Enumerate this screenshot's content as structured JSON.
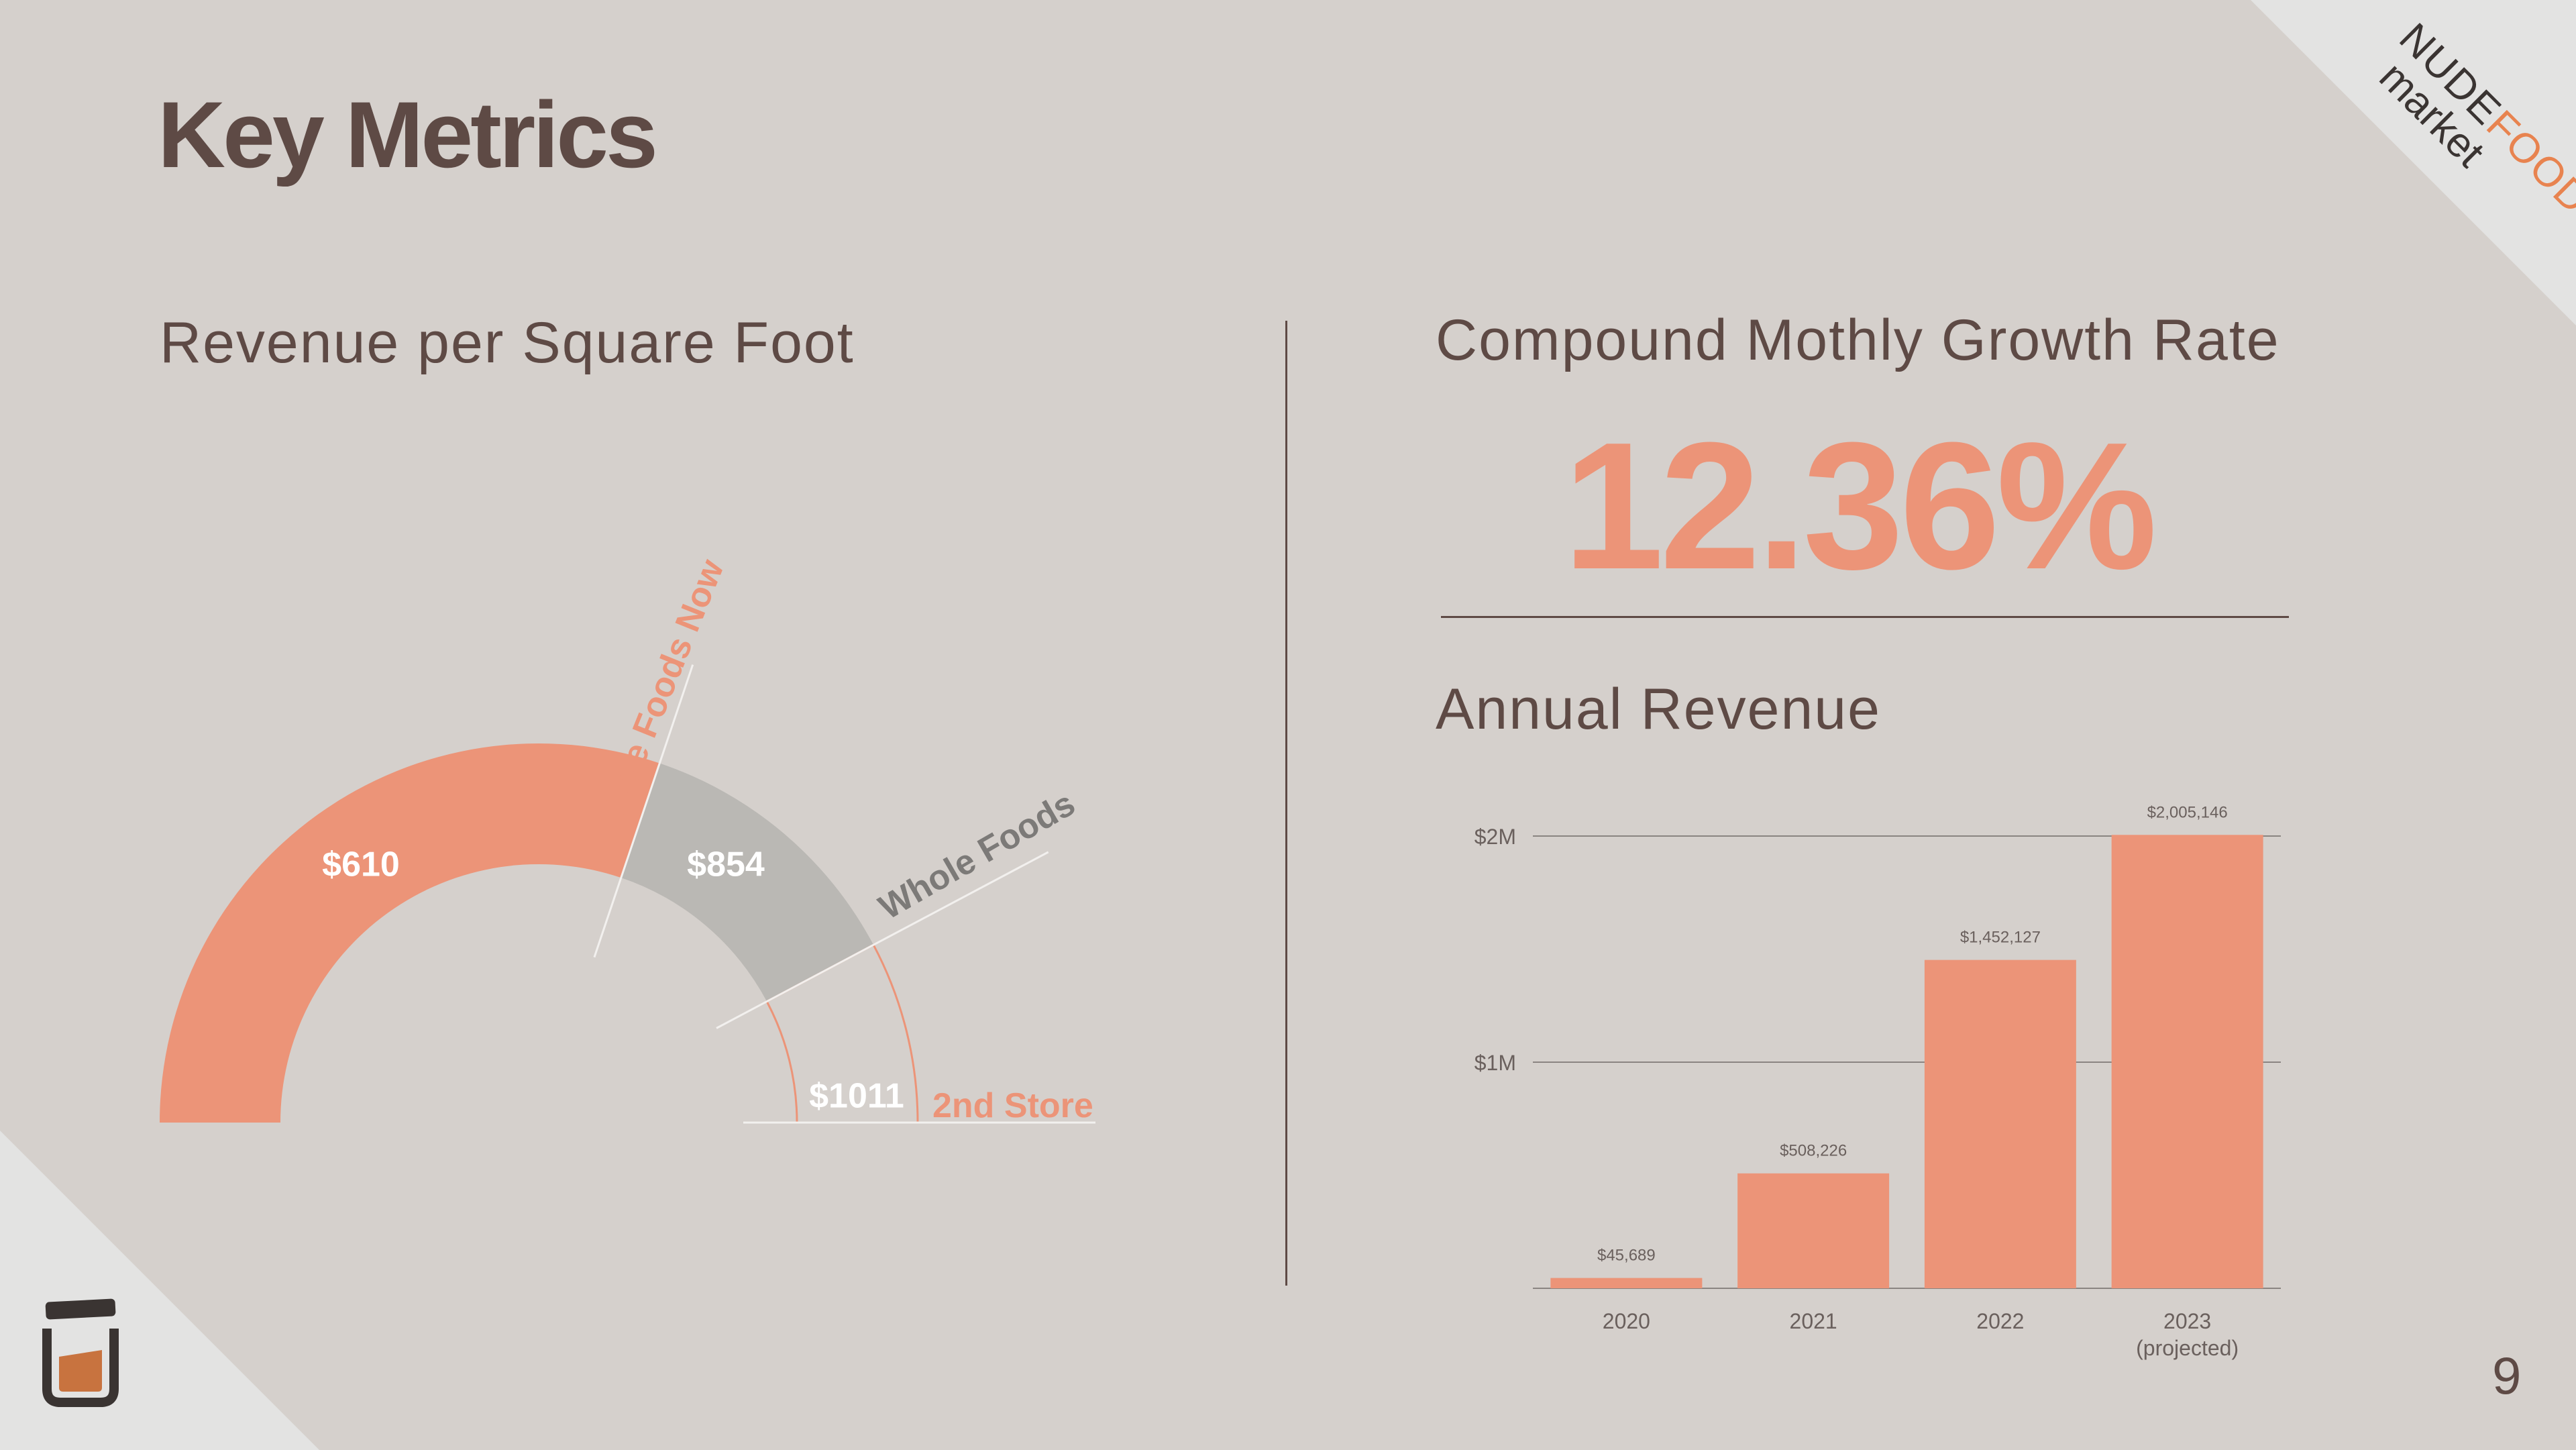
{
  "slide": {
    "title": "Key Metrics",
    "page_number": "9"
  },
  "brand": {
    "logo_word_1": "NUDE",
    "logo_word_2": "FOODS",
    "logo_word_3": "market",
    "accent_color": "#ec9478",
    "text_color": "#5e4a45"
  },
  "left_panel": {
    "heading": "Revenue per Square Foot"
  },
  "right_panel": {
    "growth_heading": "Compound Mothly Growth Rate",
    "growth_value": "12.36%",
    "revenue_heading": "Annual Revenue"
  },
  "chart_data": [
    {
      "type": "gauge",
      "title": "Revenue per Square Foot",
      "max": 1011,
      "segments": [
        {
          "label": "$610",
          "value": 610,
          "color": "#ec9478"
        },
        {
          "label": "$854",
          "value": 854,
          "color": "#bab8b4"
        },
        {
          "label": "$1011",
          "value": 1011,
          "color": "#d5d0cc"
        }
      ],
      "markers": [
        {
          "name": "Nude Foods Now",
          "value": 610,
          "color": "#ec9478"
        },
        {
          "name": "Whole Foods",
          "value": 854,
          "color": "#7c7a78"
        },
        {
          "name": "2nd Store",
          "value": 1011,
          "color": "#ec9478"
        }
      ]
    },
    {
      "type": "bar",
      "title": "Annual Revenue",
      "categories": [
        "2020",
        "2021",
        "2022",
        "2023"
      ],
      "category_notes": [
        "",
        "",
        "",
        "(projected)"
      ],
      "values": [
        45689,
        508226,
        1452127,
        2005146
      ],
      "value_labels": [
        "$45,689",
        "$508,226",
        "$1,452,127",
        "$2,005,146"
      ],
      "yticks": [
        {
          "value": 1000000,
          "label": "$1M"
        },
        {
          "value": 2000000,
          "label": "$2M"
        }
      ],
      "ylim": [
        0,
        2000000
      ],
      "grid": true,
      "bar_color": "#ec9478"
    }
  ]
}
